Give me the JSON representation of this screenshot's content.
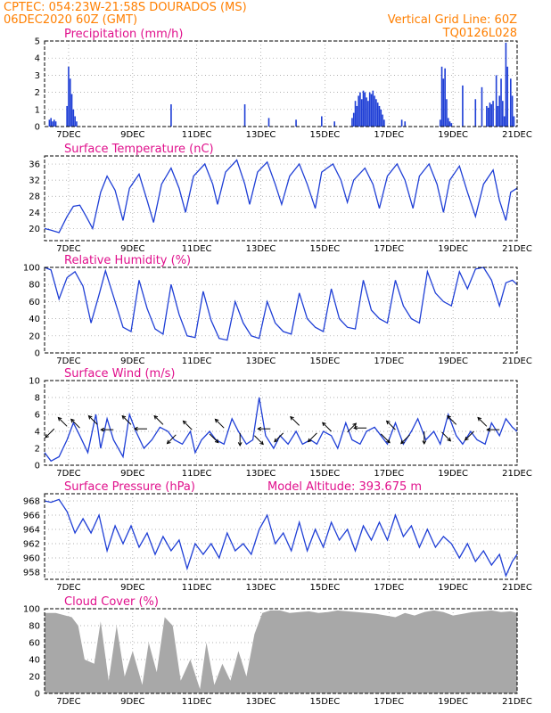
{
  "header": {
    "line1_left": "CPTEC:  054:23W-21:58S  DOURADOS (MS)",
    "line2_left": "06DEC2020 60Z (GMT)",
    "line1_right": "Vertical Grid Line: 60Z",
    "line2_right": "TQ0126L028"
  },
  "colors": {
    "header": "#ff7f00",
    "title": "#e0108c",
    "line": "#1f3fd6",
    "bar": "#1f3fd6",
    "cloud": "#a8a8a8"
  },
  "x_ticks": [
    "7DEC",
    "9DEC",
    "11DEC",
    "13DEC",
    "15DEC",
    "17DEC",
    "19DEC",
    "21DEC"
  ],
  "chart_data": [
    {
      "id": "precip",
      "type": "bar",
      "title": "Precipitation (mm/h)",
      "xlim": [
        6.25,
        21.0
      ],
      "ylim": [
        0,
        5
      ],
      "yticks": [
        0,
        1,
        2,
        3,
        4,
        5
      ],
      "x": [
        6.4,
        6.45,
        6.5,
        6.55,
        6.6,
        6.95,
        7.0,
        7.05,
        7.1,
        7.15,
        7.2,
        7.25,
        10.2,
        12.5,
        13.25,
        14.1,
        14.9,
        15.3,
        15.85,
        15.9,
        15.95,
        16.0,
        16.05,
        16.1,
        16.15,
        16.2,
        16.25,
        16.3,
        16.35,
        16.4,
        16.45,
        16.5,
        16.55,
        16.6,
        16.65,
        16.7,
        16.75,
        16.8,
        16.85,
        17.4,
        17.5,
        18.6,
        18.65,
        18.7,
        18.75,
        18.8,
        18.85,
        18.9,
        18.95,
        19.3,
        19.7,
        19.9,
        20.05,
        20.1,
        20.15,
        20.2,
        20.25,
        20.35,
        20.4,
        20.45,
        20.5,
        20.55,
        20.6,
        20.65,
        20.7,
        20.8,
        20.85,
        20.9
      ],
      "values": [
        0.4,
        0.5,
        0.3,
        0.4,
        0.3,
        1.2,
        3.5,
        2.8,
        1.9,
        1.0,
        0.6,
        0.3,
        1.3,
        1.3,
        0.5,
        0.4,
        0.6,
        0.3,
        0.5,
        0.8,
        1.5,
        1.2,
        1.8,
        2.0,
        1.6,
        2.1,
        2.0,
        1.7,
        1.5,
        2.0,
        1.9,
        2.1,
        1.8,
        1.6,
        1.4,
        1.2,
        1.0,
        0.7,
        0.4,
        0.4,
        0.3,
        0.4,
        3.5,
        2.8,
        3.4,
        1.6,
        0.5,
        0.3,
        0.2,
        2.4,
        1.6,
        2.3,
        1.2,
        1.1,
        1.4,
        1.3,
        1.5,
        3.0,
        1.2,
        1.8,
        2.8,
        1.5,
        0.6,
        4.9,
        3.5,
        2.8,
        1.8,
        0.6
      ]
    },
    {
      "id": "temp",
      "type": "line",
      "title": "Surface Temperature (nC)",
      "xlim": [
        6.25,
        21.0
      ],
      "ylim": [
        17,
        38
      ],
      "yticks": [
        20,
        24,
        28,
        32,
        36
      ],
      "x": [
        6.25,
        6.45,
        6.7,
        6.95,
        7.15,
        7.35,
        7.55,
        7.75,
        8.0,
        8.2,
        8.45,
        8.7,
        8.9,
        9.2,
        9.45,
        9.65,
        9.9,
        10.2,
        10.45,
        10.65,
        10.9,
        11.25,
        11.5,
        11.65,
        11.9,
        12.25,
        12.5,
        12.65,
        12.9,
        13.2,
        13.45,
        13.65,
        13.9,
        14.2,
        14.45,
        14.7,
        14.9,
        15.25,
        15.5,
        15.7,
        15.9,
        16.25,
        16.5,
        16.7,
        16.95,
        17.25,
        17.5,
        17.75,
        17.95,
        18.25,
        18.5,
        18.7,
        18.9,
        19.2,
        19.45,
        19.7,
        19.95,
        20.25,
        20.45,
        20.65,
        20.8,
        21.0
      ],
      "values": [
        20,
        19.6,
        19,
        23,
        25.5,
        25.8,
        23,
        20,
        29,
        33,
        29.5,
        22,
        30,
        33.5,
        27,
        21.5,
        31,
        35,
        30,
        24,
        33,
        36,
        31,
        26,
        34,
        37,
        31,
        26,
        34,
        36.5,
        31,
        26,
        33,
        36,
        31,
        25,
        34,
        36,
        32,
        26.5,
        32,
        35,
        31,
        25,
        33,
        36,
        32,
        25,
        33,
        36,
        31,
        24,
        32,
        35.5,
        29,
        23,
        31,
        34.5,
        27,
        22,
        29,
        30
      ]
    },
    {
      "id": "rh",
      "type": "line",
      "title": "Relative Humidity (%)",
      "xlim": [
        6.25,
        21.0
      ],
      "ylim": [
        0,
        100
      ],
      "yticks": [
        0,
        20,
        40,
        60,
        80,
        100
      ],
      "x": [
        6.25,
        6.45,
        6.7,
        6.95,
        7.2,
        7.45,
        7.7,
        7.95,
        8.15,
        8.45,
        8.7,
        8.95,
        9.2,
        9.45,
        9.7,
        9.95,
        10.2,
        10.45,
        10.7,
        10.95,
        11.2,
        11.45,
        11.7,
        11.95,
        12.2,
        12.45,
        12.7,
        12.95,
        13.2,
        13.45,
        13.7,
        13.95,
        14.2,
        14.45,
        14.7,
        14.95,
        15.2,
        15.45,
        15.7,
        15.95,
        16.2,
        16.45,
        16.7,
        16.95,
        17.2,
        17.45,
        17.7,
        17.95,
        18.2,
        18.45,
        18.7,
        18.95,
        19.2,
        19.45,
        19.7,
        19.95,
        20.2,
        20.45,
        20.65,
        20.85,
        21.0
      ],
      "values": [
        100,
        97,
        63,
        88,
        95,
        78,
        35,
        68,
        96,
        60,
        30,
        25,
        85,
        52,
        28,
        22,
        80,
        45,
        20,
        18,
        72,
        38,
        17,
        15,
        60,
        35,
        20,
        17,
        60,
        35,
        25,
        22,
        70,
        40,
        30,
        25,
        75,
        40,
        30,
        28,
        85,
        50,
        40,
        35,
        85,
        55,
        40,
        35,
        95,
        70,
        60,
        55,
        95,
        75,
        98,
        100,
        85,
        55,
        82,
        85,
        80
      ]
    },
    {
      "id": "wind",
      "type": "line",
      "title": "Surface Wind (m/s)",
      "xlim": [
        6.25,
        21.0
      ],
      "ylim": [
        0,
        10
      ],
      "yticks": [
        0,
        2,
        4,
        6,
        8,
        10
      ],
      "x": [
        6.25,
        6.45,
        6.7,
        6.95,
        7.15,
        7.35,
        7.6,
        7.85,
        8.0,
        8.2,
        8.4,
        8.7,
        8.9,
        9.1,
        9.35,
        9.6,
        9.85,
        10.1,
        10.3,
        10.55,
        10.8,
        10.95,
        11.15,
        11.4,
        11.6,
        11.85,
        12.1,
        12.3,
        12.55,
        12.75,
        12.95,
        13.15,
        13.4,
        13.6,
        13.85,
        14.1,
        14.3,
        14.55,
        14.75,
        14.95,
        15.2,
        15.4,
        15.65,
        15.85,
        16.1,
        16.3,
        16.55,
        16.75,
        16.95,
        17.2,
        17.45,
        17.7,
        17.9,
        18.15,
        18.4,
        18.6,
        18.85,
        19.1,
        19.3,
        19.55,
        19.75,
        20.0,
        20.2,
        20.45,
        20.65,
        20.85,
        21.0
      ],
      "values": [
        1.5,
        0.5,
        1,
        3,
        5,
        3.5,
        1.5,
        6,
        2,
        5.5,
        3,
        1,
        6,
        4,
        2,
        3,
        4.5,
        4,
        3,
        2.5,
        4,
        1.5,
        3,
        4,
        3,
        2.5,
        5.5,
        4,
        2.5,
        3,
        8,
        3.5,
        2,
        3.5,
        2.5,
        4,
        2.5,
        3,
        2.5,
        4,
        3.5,
        2,
        5,
        3,
        2.5,
        4,
        4.5,
        3.5,
        2.5,
        5,
        2.5,
        4,
        5.5,
        3,
        4,
        2.5,
        6,
        3.5,
        2.5,
        4,
        3,
        2.5,
        5,
        3.5,
        5.5,
        4.5,
        4
      ]
    },
    {
      "id": "pres",
      "type": "line",
      "title": "Surface Pressure (hPa)",
      "xlim": [
        6.25,
        21.0
      ],
      "ylim": [
        957,
        969
      ],
      "yticks": [
        958,
        960,
        962,
        964,
        966,
        968
      ],
      "x": [
        6.25,
        6.45,
        6.7,
        6.95,
        7.2,
        7.45,
        7.7,
        7.95,
        8.2,
        8.45,
        8.7,
        8.95,
        9.2,
        9.45,
        9.7,
        9.95,
        10.2,
        10.45,
        10.7,
        10.95,
        11.2,
        11.45,
        11.7,
        11.95,
        12.2,
        12.45,
        12.7,
        12.95,
        13.2,
        13.45,
        13.7,
        13.95,
        14.2,
        14.45,
        14.7,
        14.95,
        15.2,
        15.45,
        15.7,
        15.95,
        16.2,
        16.45,
        16.7,
        16.95,
        17.2,
        17.45,
        17.7,
        17.95,
        18.2,
        18.45,
        18.7,
        18.95,
        19.2,
        19.45,
        19.7,
        19.95,
        20.2,
        20.45,
        20.65,
        20.85,
        21.0
      ],
      "values": [
        968,
        967.8,
        968.2,
        966.5,
        963.5,
        965.5,
        963.5,
        966,
        961,
        964.5,
        962,
        964.5,
        961.5,
        963.5,
        960.5,
        963,
        961,
        962.5,
        958.5,
        962,
        960.5,
        962,
        960,
        963.5,
        961,
        962,
        960.5,
        964,
        966,
        962,
        963.5,
        961,
        965,
        961,
        964,
        961.5,
        965,
        962.5,
        964,
        961,
        964.5,
        962.5,
        965,
        962.5,
        966,
        963,
        964.5,
        961.5,
        964,
        961.5,
        963,
        962,
        960,
        962,
        959.5,
        961,
        959,
        960.5,
        957.5,
        959.5,
        960.5
      ]
    },
    {
      "id": "cloud",
      "type": "area",
      "title": "Cloud Cover (%)",
      "xlim": [
        6.25,
        21.0
      ],
      "ylim": [
        0,
        100
      ],
      "yticks": [
        0,
        20,
        40,
        60,
        80,
        100
      ],
      "x": [
        6.25,
        6.6,
        6.9,
        7.1,
        7.3,
        7.5,
        7.8,
        8.0,
        8.25,
        8.5,
        8.75,
        9.0,
        9.3,
        9.5,
        9.75,
        10.0,
        10.25,
        10.5,
        10.8,
        11.1,
        11.3,
        11.55,
        11.8,
        12.05,
        12.3,
        12.55,
        12.8,
        13.05,
        13.3,
        13.6,
        13.9,
        14.2,
        14.5,
        14.8,
        15.1,
        15.4,
        15.7,
        16.0,
        16.3,
        16.6,
        16.9,
        17.2,
        17.5,
        17.8,
        18.1,
        18.4,
        18.7,
        19.0,
        19.3,
        19.6,
        19.9,
        20.2,
        20.5,
        20.8,
        21.0
      ],
      "values": [
        95,
        95,
        92,
        90,
        80,
        40,
        35,
        85,
        15,
        80,
        20,
        50,
        10,
        60,
        25,
        90,
        80,
        15,
        40,
        5,
        60,
        10,
        35,
        15,
        50,
        20,
        70,
        95,
        98,
        98,
        95,
        96,
        97,
        95,
        96,
        98,
        97,
        96,
        95,
        94,
        92,
        90,
        95,
        92,
        96,
        98,
        96,
        92,
        94,
        96,
        97,
        98,
        96,
        97,
        95
      ]
    }
  ],
  "model_altitude": "Model Altitude: 393.675 m",
  "wind_arrows": [
    {
      "x": 6.55,
      "y": 4.3,
      "dir": "dl"
    },
    {
      "x": 6.95,
      "y": 4.6,
      "dir": "ul"
    },
    {
      "x": 7.35,
      "y": 4.4,
      "dir": "ul"
    },
    {
      "x": 7.9,
      "y": 4.8,
      "dir": "ul"
    },
    {
      "x": 8.4,
      "y": 4.2,
      "dir": "l"
    },
    {
      "x": 8.95,
      "y": 4.8,
      "dir": "ul"
    },
    {
      "x": 9.45,
      "y": 4.3,
      "dir": "l"
    },
    {
      "x": 9.95,
      "y": 4.8,
      "dir": "ul"
    },
    {
      "x": 10.35,
      "y": 3.6,
      "dir": "dl"
    },
    {
      "x": 10.85,
      "y": 4.2,
      "dir": "ul"
    },
    {
      "x": 11.4,
      "y": 3.7,
      "dir": "dr"
    },
    {
      "x": 11.85,
      "y": 4.4,
      "dir": "ul"
    },
    {
      "x": 12.35,
      "y": 3.8,
      "dir": "d"
    },
    {
      "x": 12.8,
      "y": 3.5,
      "dir": "dr"
    },
    {
      "x": 13.3,
      "y": 4.3,
      "dir": "l"
    },
    {
      "x": 13.7,
      "y": 3.8,
      "dir": "dl"
    },
    {
      "x": 14.2,
      "y": 4.7,
      "dir": "ul"
    },
    {
      "x": 14.75,
      "y": 3.8,
      "dir": "dl"
    },
    {
      "x": 15.2,
      "y": 4.0,
      "dir": "ul"
    },
    {
      "x": 15.7,
      "y": 3.9,
      "dir": "ur"
    },
    {
      "x": 16.3,
      "y": 4.4,
      "dir": "l"
    },
    {
      "x": 16.75,
      "y": 3.7,
      "dir": "dr"
    },
    {
      "x": 17.2,
      "y": 4.2,
      "dir": "ul"
    },
    {
      "x": 17.65,
      "y": 3.6,
      "dir": "dl"
    },
    {
      "x": 18.1,
      "y": 4.0,
      "dir": "d"
    },
    {
      "x": 18.65,
      "y": 3.9,
      "dir": "dr"
    },
    {
      "x": 19.1,
      "y": 4.8,
      "dir": "ul"
    },
    {
      "x": 19.65,
      "y": 4.0,
      "dir": "dl"
    },
    {
      "x": 20.05,
      "y": 4.6,
      "dir": "ul"
    },
    {
      "x": 20.45,
      "y": 4.2,
      "dir": "l"
    }
  ]
}
